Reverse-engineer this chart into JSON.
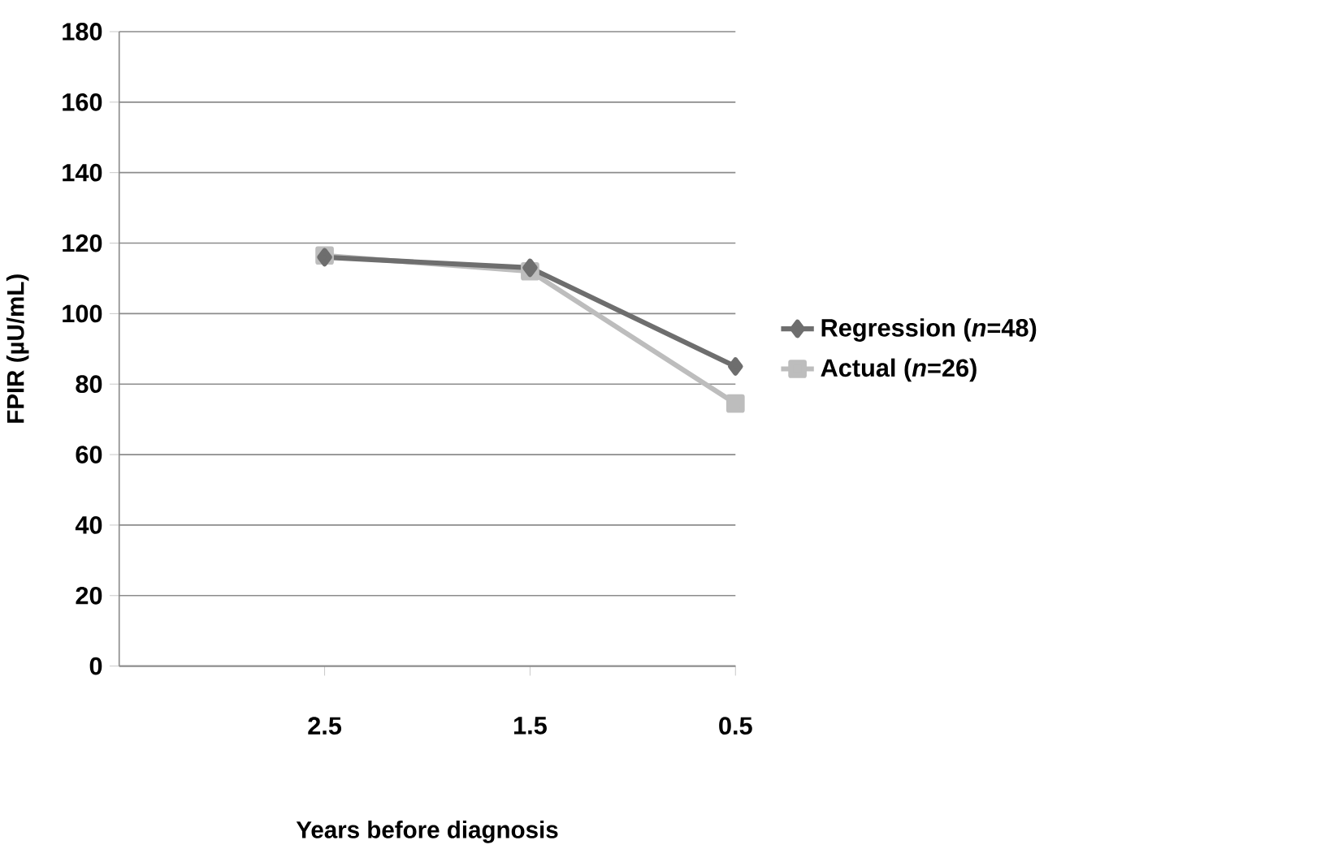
{
  "chart_data": {
    "type": "line",
    "xlabel": "Years before diagnosis",
    "ylabel": "FPIR (µU/mL)",
    "categories": [
      "2.5",
      "1.5",
      "0.5"
    ],
    "series": [
      {
        "name": "Regression (*n*=48)",
        "color": "#6e6e6e",
        "marker": "diamond",
        "values": [
          116,
          113,
          85
        ]
      },
      {
        "name": "Actual (*n*=26)",
        "color": "#bdbdbd",
        "marker": "square",
        "values": [
          116.5,
          112,
          74.5
        ]
      }
    ],
    "ylim": [
      0,
      180
    ],
    "yticks": [
      0,
      20,
      40,
      60,
      80,
      100,
      120,
      140,
      160,
      180
    ],
    "grid": "y",
    "legend": "right"
  }
}
